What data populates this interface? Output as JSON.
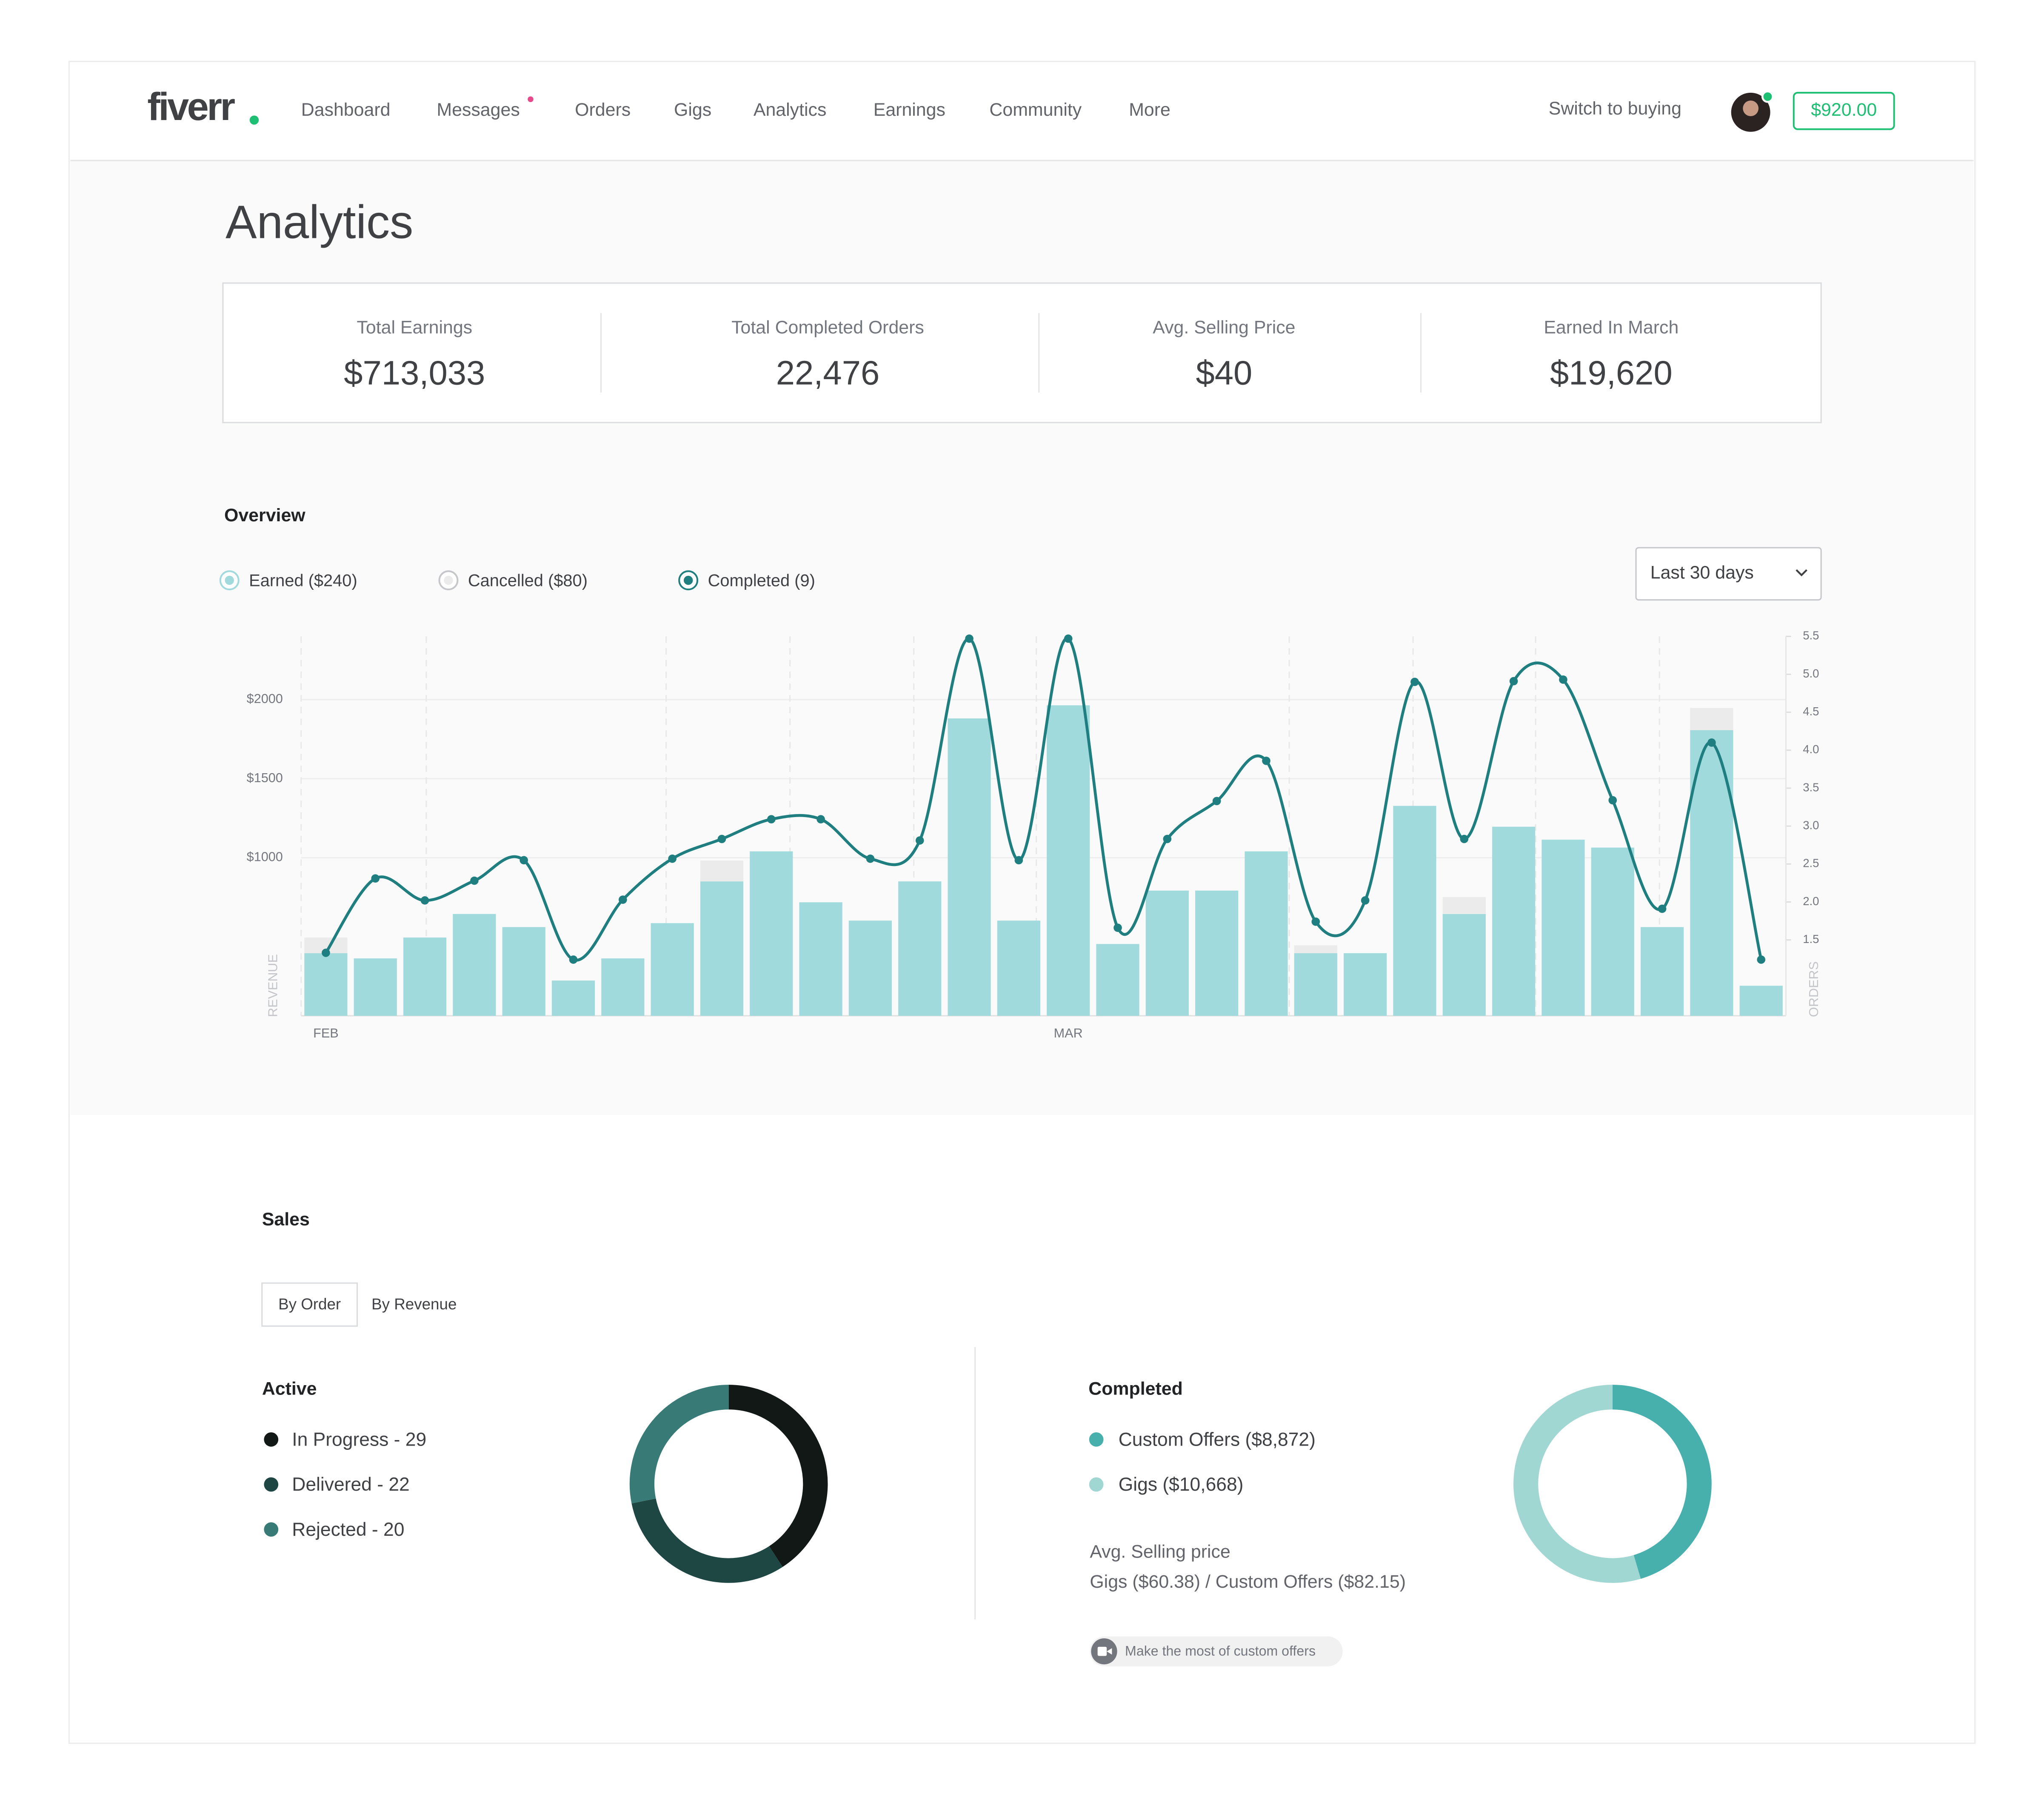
{
  "nav": {
    "logo": "fiverr",
    "items": [
      "Dashboard",
      "Messages",
      "Orders",
      "Gigs",
      "Analytics",
      "Earnings",
      "Community",
      "More"
    ],
    "switch": "Switch to buying",
    "balance": "$920.00"
  },
  "page_title": "Analytics",
  "stats": [
    {
      "label": "Total Earnings",
      "value": "$713,033"
    },
    {
      "label": "Total Completed Orders",
      "value": "22,476"
    },
    {
      "label": "Avg. Selling Price",
      "value": "$40"
    },
    {
      "label": "Earned In March",
      "value": "$19,620"
    }
  ],
  "overview": {
    "title": "Overview",
    "dropdown": "Last 30 days"
  },
  "sales": {
    "title": "Sales",
    "tabs": [
      "By Order",
      "By Revenue"
    ],
    "avg_title": "Avg. Selling price",
    "avg_text": "Gigs ($60.38) / Custom Offers ($82.15)",
    "tip": "Make the most of custom offers"
  },
  "chart_data": [
    {
      "type": "bar",
      "categories": [
        "FEB",
        null,
        null,
        null,
        null,
        null,
        null,
        null,
        null,
        null,
        null,
        null,
        null,
        null,
        null,
        "MAR",
        null,
        null,
        null,
        null,
        null,
        null,
        null,
        null,
        null,
        null,
        null,
        null,
        null,
        null
      ],
      "series": [
        {
          "name": "Earned ($240)",
          "color": "#a0dadd",
          "values": [
            396,
            363,
            495,
            644,
            561,
            223,
            363,
            586,
            850,
            1040,
            718,
            602,
            850,
            1881,
            602,
            1964,
            454,
            792,
            792,
            1040,
            396,
            396,
            1328,
            644,
            1196,
            1114,
            1064,
            561,
            1807,
            190
          ]
        },
        {
          "name": "Cancelled ($80)",
          "color": "#ebebeb",
          "values": [
            99,
            null,
            null,
            null,
            null,
            null,
            null,
            null,
            132,
            null,
            null,
            null,
            null,
            null,
            null,
            null,
            null,
            null,
            null,
            null,
            50,
            null,
            null,
            107,
            null,
            null,
            null,
            null,
            140,
            null
          ]
        },
        {
          "name": "Completed (9)",
          "color": "#1f7f80",
          "type": "line",
          "axis": "y2",
          "values": [
            1.33,
            2.31,
            2.02,
            2.28,
            2.55,
            1.24,
            2.03,
            2.57,
            2.83,
            3.09,
            3.09,
            2.57,
            2.81,
            5.47,
            2.55,
            5.47,
            1.66,
            2.83,
            3.33,
            3.86,
            1.74,
            2.02,
            4.9,
            2.83,
            4.91,
            4.93,
            3.34,
            1.91,
            4.1,
            1.24
          ]
        }
      ],
      "ylabel": "REVENUE",
      "y2label": "ORDERS",
      "ylim": [
        0,
        2400
      ],
      "yticks": [
        {
          "value": 1000,
          "label": "$1000"
        },
        {
          "value": 1500,
          "label": "$1500"
        },
        {
          "value": 2000,
          "label": "$2000"
        }
      ],
      "y2lim": [
        0.5,
        5.5
      ],
      "y2ticks": [
        1.5,
        {
          "value": 2,
          "label": "2.0"
        },
        2.5,
        {
          "value": 3,
          "label": "3.0"
        },
        3.5,
        {
          "value": 4,
          "label": "4.0"
        },
        4.5,
        {
          "value": 5,
          "label": "5.0"
        },
        5.5
      ],
      "grid": true
    },
    {
      "type": "pie",
      "title": "Active",
      "categories": [
        "In Progress - 29",
        "Delivered - 22",
        "Rejected - 20"
      ],
      "values": [
        29,
        22,
        20
      ],
      "colors": [
        "#121816",
        "#1e4744",
        "#377a76"
      ]
    },
    {
      "type": "pie",
      "title": "Completed",
      "categories": [
        "Custom Offers ($8,872)",
        "Gigs ($10,668)"
      ],
      "values": [
        8872,
        10668
      ],
      "colors": [
        "#47b0ad",
        "#a1d7d2"
      ]
    }
  ]
}
